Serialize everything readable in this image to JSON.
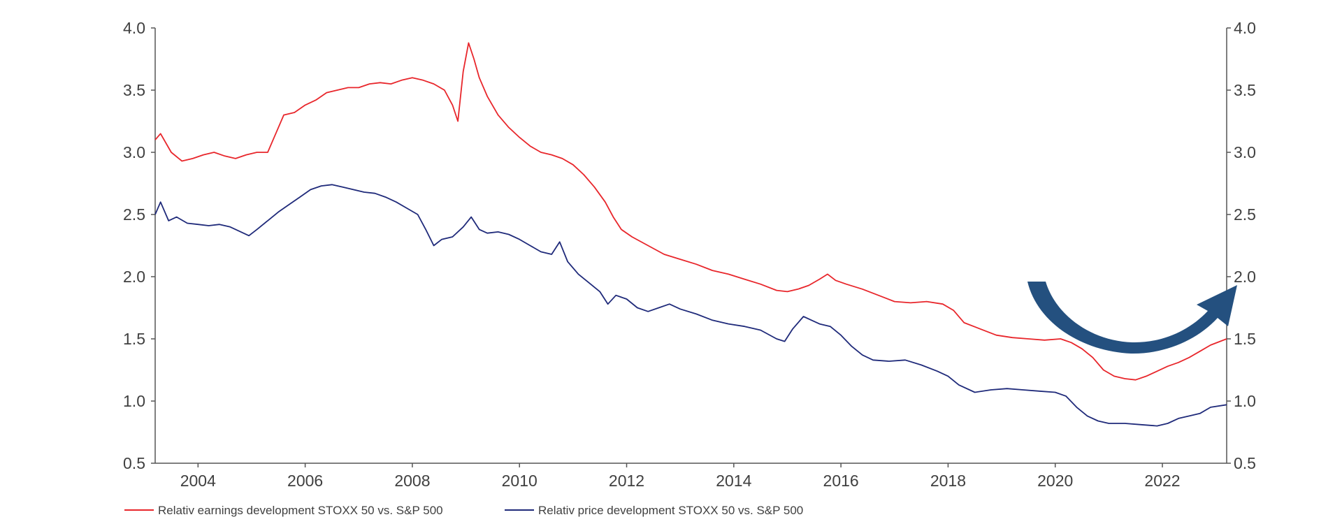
{
  "chart_data": {
    "type": "line",
    "title": "",
    "xlabel": "",
    "ylabel": "",
    "xlim": [
      2003.2,
      2023.2
    ],
    "ylim": [
      0.5,
      4.0
    ],
    "y_ticks": [
      "0.5",
      "1.0",
      "1.5",
      "2.0",
      "2.5",
      "3.0",
      "3.5",
      "4.0"
    ],
    "x_ticks": [
      "2004",
      "2006",
      "2008",
      "2010",
      "2012",
      "2014",
      "2016",
      "2018",
      "2020",
      "2022"
    ],
    "grid": false,
    "legend_position": "bottom-left",
    "annotation": "curved-arrow-upturn",
    "series": [
      {
        "name": "Relativ earnings development STOXX 50 vs. S&P 500",
        "color": "#e8262b",
        "points": [
          [
            2003.2,
            3.1
          ],
          [
            2003.3,
            3.15
          ],
          [
            2003.5,
            3.0
          ],
          [
            2003.7,
            2.93
          ],
          [
            2003.9,
            2.95
          ],
          [
            2004.1,
            2.98
          ],
          [
            2004.3,
            3.0
          ],
          [
            2004.5,
            2.97
          ],
          [
            2004.7,
            2.95
          ],
          [
            2004.9,
            2.98
          ],
          [
            2005.1,
            3.0
          ],
          [
            2005.3,
            3.0
          ],
          [
            2005.45,
            3.15
          ],
          [
            2005.6,
            3.3
          ],
          [
            2005.8,
            3.32
          ],
          [
            2006.0,
            3.38
          ],
          [
            2006.2,
            3.42
          ],
          [
            2006.4,
            3.48
          ],
          [
            2006.6,
            3.5
          ],
          [
            2006.8,
            3.52
          ],
          [
            2007.0,
            3.52
          ],
          [
            2007.2,
            3.55
          ],
          [
            2007.4,
            3.56
          ],
          [
            2007.6,
            3.55
          ],
          [
            2007.8,
            3.58
          ],
          [
            2008.0,
            3.6
          ],
          [
            2008.2,
            3.58
          ],
          [
            2008.4,
            3.55
          ],
          [
            2008.6,
            3.5
          ],
          [
            2008.75,
            3.38
          ],
          [
            2008.85,
            3.25
          ],
          [
            2008.95,
            3.65
          ],
          [
            2009.05,
            3.88
          ],
          [
            2009.15,
            3.75
          ],
          [
            2009.25,
            3.6
          ],
          [
            2009.4,
            3.45
          ],
          [
            2009.6,
            3.3
          ],
          [
            2009.8,
            3.2
          ],
          [
            2010.0,
            3.12
          ],
          [
            2010.2,
            3.05
          ],
          [
            2010.4,
            3.0
          ],
          [
            2010.6,
            2.98
          ],
          [
            2010.8,
            2.95
          ],
          [
            2011.0,
            2.9
          ],
          [
            2011.2,
            2.82
          ],
          [
            2011.4,
            2.72
          ],
          [
            2011.6,
            2.6
          ],
          [
            2011.75,
            2.48
          ],
          [
            2011.9,
            2.38
          ],
          [
            2012.1,
            2.32
          ],
          [
            2012.4,
            2.25
          ],
          [
            2012.7,
            2.18
          ],
          [
            2013.0,
            2.14
          ],
          [
            2013.3,
            2.1
          ],
          [
            2013.6,
            2.05
          ],
          [
            2013.9,
            2.02
          ],
          [
            2014.2,
            1.98
          ],
          [
            2014.5,
            1.94
          ],
          [
            2014.8,
            1.89
          ],
          [
            2015.0,
            1.88
          ],
          [
            2015.2,
            1.9
          ],
          [
            2015.4,
            1.93
          ],
          [
            2015.6,
            1.98
          ],
          [
            2015.75,
            2.02
          ],
          [
            2015.9,
            1.97
          ],
          [
            2016.1,
            1.94
          ],
          [
            2016.4,
            1.9
          ],
          [
            2016.7,
            1.85
          ],
          [
            2017.0,
            1.8
          ],
          [
            2017.3,
            1.79
          ],
          [
            2017.6,
            1.8
          ],
          [
            2017.9,
            1.78
          ],
          [
            2018.1,
            1.73
          ],
          [
            2018.3,
            1.63
          ],
          [
            2018.6,
            1.58
          ],
          [
            2018.9,
            1.53
          ],
          [
            2019.2,
            1.51
          ],
          [
            2019.5,
            1.5
          ],
          [
            2019.8,
            1.49
          ],
          [
            2020.1,
            1.5
          ],
          [
            2020.3,
            1.47
          ],
          [
            2020.5,
            1.42
          ],
          [
            2020.7,
            1.35
          ],
          [
            2020.9,
            1.25
          ],
          [
            2021.1,
            1.2
          ],
          [
            2021.3,
            1.18
          ],
          [
            2021.5,
            1.17
          ],
          [
            2021.7,
            1.2
          ],
          [
            2021.9,
            1.24
          ],
          [
            2022.1,
            1.28
          ],
          [
            2022.3,
            1.31
          ],
          [
            2022.5,
            1.35
          ],
          [
            2022.7,
            1.4
          ],
          [
            2022.9,
            1.45
          ],
          [
            2023.2,
            1.5
          ]
        ]
      },
      {
        "name": "Relativ price development STOXX 50 vs. S&P 500",
        "color": "#1f2a7a",
        "points": [
          [
            2003.2,
            2.5
          ],
          [
            2003.3,
            2.6
          ],
          [
            2003.45,
            2.45
          ],
          [
            2003.6,
            2.48
          ],
          [
            2003.8,
            2.43
          ],
          [
            2004.0,
            2.42
          ],
          [
            2004.2,
            2.41
          ],
          [
            2004.4,
            2.42
          ],
          [
            2004.6,
            2.4
          ],
          [
            2004.8,
            2.36
          ],
          [
            2004.95,
            2.33
          ],
          [
            2005.1,
            2.38
          ],
          [
            2005.3,
            2.45
          ],
          [
            2005.5,
            2.52
          ],
          [
            2005.7,
            2.58
          ],
          [
            2005.9,
            2.64
          ],
          [
            2006.1,
            2.7
          ],
          [
            2006.3,
            2.73
          ],
          [
            2006.5,
            2.74
          ],
          [
            2006.7,
            2.72
          ],
          [
            2006.9,
            2.7
          ],
          [
            2007.1,
            2.68
          ],
          [
            2007.3,
            2.67
          ],
          [
            2007.5,
            2.64
          ],
          [
            2007.7,
            2.6
          ],
          [
            2007.9,
            2.55
          ],
          [
            2008.1,
            2.5
          ],
          [
            2008.25,
            2.38
          ],
          [
            2008.4,
            2.25
          ],
          [
            2008.55,
            2.3
          ],
          [
            2008.75,
            2.32
          ],
          [
            2008.95,
            2.4
          ],
          [
            2009.1,
            2.48
          ],
          [
            2009.25,
            2.38
          ],
          [
            2009.4,
            2.35
          ],
          [
            2009.6,
            2.36
          ],
          [
            2009.8,
            2.34
          ],
          [
            2010.0,
            2.3
          ],
          [
            2010.2,
            2.25
          ],
          [
            2010.4,
            2.2
          ],
          [
            2010.6,
            2.18
          ],
          [
            2010.75,
            2.28
          ],
          [
            2010.9,
            2.12
          ],
          [
            2011.1,
            2.02
          ],
          [
            2011.3,
            1.95
          ],
          [
            2011.5,
            1.88
          ],
          [
            2011.65,
            1.78
          ],
          [
            2011.8,
            1.85
          ],
          [
            2012.0,
            1.82
          ],
          [
            2012.2,
            1.75
          ],
          [
            2012.4,
            1.72
          ],
          [
            2012.6,
            1.75
          ],
          [
            2012.8,
            1.78
          ],
          [
            2013.0,
            1.74
          ],
          [
            2013.3,
            1.7
          ],
          [
            2013.6,
            1.65
          ],
          [
            2013.9,
            1.62
          ],
          [
            2014.2,
            1.6
          ],
          [
            2014.5,
            1.57
          ],
          [
            2014.8,
            1.5
          ],
          [
            2014.95,
            1.48
          ],
          [
            2015.1,
            1.58
          ],
          [
            2015.3,
            1.68
          ],
          [
            2015.45,
            1.65
          ],
          [
            2015.6,
            1.62
          ],
          [
            2015.8,
            1.6
          ],
          [
            2016.0,
            1.53
          ],
          [
            2016.2,
            1.44
          ],
          [
            2016.4,
            1.37
          ],
          [
            2016.6,
            1.33
          ],
          [
            2016.9,
            1.32
          ],
          [
            2017.2,
            1.33
          ],
          [
            2017.5,
            1.29
          ],
          [
            2017.8,
            1.24
          ],
          [
            2018.0,
            1.2
          ],
          [
            2018.2,
            1.13
          ],
          [
            2018.5,
            1.07
          ],
          [
            2018.8,
            1.09
          ],
          [
            2019.1,
            1.1
          ],
          [
            2019.4,
            1.09
          ],
          [
            2019.7,
            1.08
          ],
          [
            2020.0,
            1.07
          ],
          [
            2020.2,
            1.04
          ],
          [
            2020.4,
            0.95
          ],
          [
            2020.6,
            0.88
          ],
          [
            2020.8,
            0.84
          ],
          [
            2021.0,
            0.82
          ],
          [
            2021.3,
            0.82
          ],
          [
            2021.6,
            0.81
          ],
          [
            2021.9,
            0.8
          ],
          [
            2022.1,
            0.82
          ],
          [
            2022.3,
            0.86
          ],
          [
            2022.5,
            0.88
          ],
          [
            2022.7,
            0.9
          ],
          [
            2022.9,
            0.95
          ],
          [
            2023.2,
            0.97
          ]
        ]
      }
    ]
  }
}
